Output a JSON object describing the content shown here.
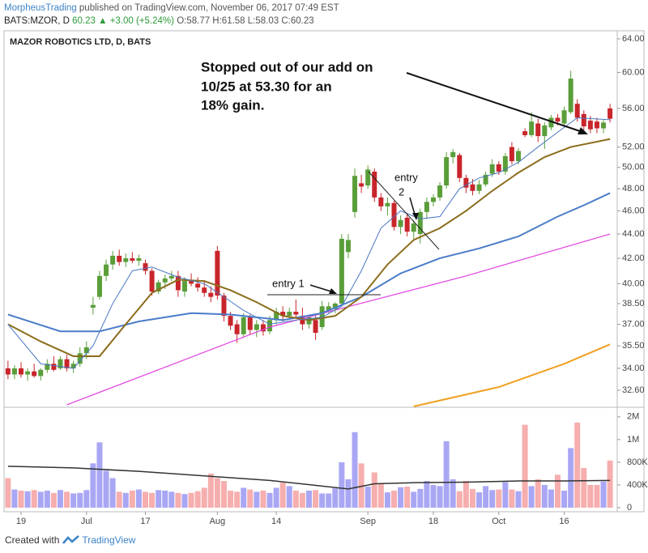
{
  "header": {
    "author": "MorpheusTrading",
    "published": " published on TradingView.com, November 06, 2017 07:49 EST",
    "symbol": "BATS:MZOR, D",
    "last": "60.23",
    "change": "▲ +3.00 (+5.24%)",
    "ohlc": "O:58.77 H:61.58 L:58.03 C:60.23"
  },
  "annotations": [
    "Stopped out of our add on",
    "10/25 at 53.30 for an",
    "18% gain.",
    "entry 1",
    "entry",
    "2"
  ],
  "footer": {
    "created": "Created with",
    "brand": "TradingView"
  },
  "chart_data": {
    "type": "candlestick",
    "title": "MAZOR ROBOTICS LTD, D, BATS",
    "categories": [
      null,
      null,
      "19",
      null,
      null,
      null,
      null,
      null,
      null,
      null,
      null,
      null,
      "Jul",
      null,
      null,
      null,
      null,
      null,
      null,
      null,
      null,
      "17",
      null,
      null,
      null,
      null,
      null,
      null,
      null,
      null,
      null,
      null,
      "Aug",
      null,
      null,
      null,
      null,
      null,
      null,
      null,
      null,
      "14",
      null,
      null,
      null,
      null,
      null,
      null,
      null,
      null,
      null,
      null,
      null,
      null,
      null,
      "Sep",
      null,
      null,
      null,
      null,
      null,
      null,
      null,
      null,
      null,
      "18",
      null,
      null,
      null,
      null,
      null,
      null,
      null,
      null,
      null,
      "Oct",
      null,
      null,
      null,
      null,
      null,
      null,
      null,
      null,
      null,
      "16",
      null,
      null,
      null,
      null,
      null,
      null,
      null
    ],
    "xlim": [
      -0.6,
      93.1
    ],
    "open": [
      34.0,
      33.6,
      34.0,
      33.6,
      33.8,
      33.5,
      33.9,
      34.3,
      34.0,
      34.6,
      34.0,
      34.3,
      35.0,
      38.2,
      39.0,
      40.6,
      41.5,
      42.2,
      41.7,
      42.0,
      41.8,
      41.6,
      41.0,
      39.4,
      40.1,
      40.4,
      40.6,
      39.4,
      40.2,
      40.0,
      39.7,
      39.3,
      42.6,
      39.1,
      37.6,
      37.0,
      36.3,
      37.5,
      36.6,
      37.0,
      36.5,
      37.3,
      37.9,
      37.6,
      37.9,
      37.6,
      37.0,
      37.3,
      36.8,
      38.0,
      38.1,
      38.5,
      42.5,
      45.9,
      48.5,
      48.3,
      49.6,
      47.2,
      46.4,
      46.7,
      44.6,
      45.4,
      44.2,
      44.0,
      45.9,
      46.8,
      47.2,
      48.3,
      51.0,
      51.2,
      49.0,
      48.4,
      47.8,
      48.4,
      49.4,
      50.3,
      49.6,
      52.0,
      50.6,
      53.6,
      53.2,
      54.4,
      53.1,
      54.0,
      55.0,
      54.4,
      55.6,
      56.5,
      55.4,
      54.7,
      54.6,
      53.9,
      56.0
    ],
    "high": [
      34.5,
      34.2,
      34.4,
      34.0,
      34.3,
      34.0,
      34.6,
      34.8,
      34.8,
      34.9,
      34.5,
      35.4,
      35.8,
      39.0,
      41.0,
      41.9,
      42.6,
      42.7,
      42.4,
      42.5,
      42.3,
      41.9,
      41.2,
      40.3,
      40.7,
      41.0,
      41.0,
      40.5,
      40.8,
      40.5,
      40.2,
      39.8,
      43.0,
      39.3,
      37.9,
      37.3,
      37.8,
      37.7,
      37.3,
      37.3,
      37.6,
      38.2,
      38.3,
      38.2,
      38.8,
      38.2,
      37.7,
      37.6,
      38.7,
      38.6,
      38.6,
      44.0,
      44.0,
      49.9,
      49.3,
      50.2,
      49.9,
      47.6,
      47.2,
      46.9,
      45.6,
      45.8,
      45.2,
      46.2,
      47.2,
      47.5,
      48.6,
      51.5,
      51.8,
      51.4,
      49.3,
      48.9,
      48.8,
      49.6,
      50.8,
      50.6,
      51.4,
      52.5,
      51.9,
      53.9,
      55.6,
      54.9,
      54.5,
      55.3,
      55.4,
      56.2,
      60.2,
      57.0,
      55.8,
      55.2,
      55.0,
      54.8,
      56.5
    ],
    "low": [
      33.3,
      33.3,
      33.4,
      33.2,
      33.4,
      33.2,
      33.7,
      33.8,
      33.9,
      33.8,
      33.7,
      34.1,
      34.6,
      37.7,
      38.8,
      40.2,
      41.1,
      41.4,
      41.3,
      41.6,
      41.4,
      40.7,
      39.1,
      39.2,
      39.6,
      40.2,
      39.0,
      39.0,
      39.8,
      39.4,
      39.0,
      38.6,
      38.8,
      37.2,
      36.6,
      35.7,
      36.1,
      36.3,
      36.1,
      36.2,
      36.3,
      37.0,
      37.2,
      37.4,
      37.5,
      36.6,
      36.7,
      35.9,
      36.6,
      37.8,
      37.8,
      38.3,
      42.0,
      45.4,
      47.6,
      48.0,
      46.8,
      46.0,
      45.6,
      44.3,
      44.0,
      43.8,
      43.6,
      43.2,
      45.3,
      46.4,
      46.9,
      48.0,
      50.4,
      48.6,
      47.6,
      47.4,
      47.5,
      48.2,
      49.1,
      49.3,
      49.3,
      50.3,
      50.3,
      53.0,
      53.0,
      52.5,
      51.8,
      53.7,
      54.2,
      54.0,
      55.4,
      54.6,
      53.7,
      53.4,
      53.4,
      53.4,
      54.5
    ],
    "close": [
      33.6,
      34.0,
      33.6,
      33.8,
      33.5,
      33.9,
      34.3,
      33.9,
      34.6,
      34.0,
      34.3,
      35.0,
      35.4,
      38.4,
      40.6,
      41.5,
      42.2,
      41.7,
      42.0,
      41.8,
      42.0,
      41.0,
      39.4,
      40.1,
      40.4,
      40.6,
      39.5,
      40.2,
      40.0,
      39.7,
      39.3,
      39.0,
      39.1,
      37.6,
      36.9,
      36.3,
      37.5,
      36.6,
      37.0,
      36.5,
      37.3,
      37.9,
      37.6,
      37.9,
      37.7,
      37.0,
      37.5,
      36.4,
      38.3,
      38.3,
      38.5,
      43.6,
      43.5,
      49.2,
      48.2,
      49.8,
      47.2,
      46.4,
      46.7,
      44.6,
      45.2,
      44.2,
      44.9,
      45.9,
      46.8,
      47.2,
      48.3,
      51.0,
      51.5,
      49.0,
      48.1,
      47.8,
      48.4,
      49.3,
      50.3,
      49.6,
      51.1,
      50.6,
      51.6,
      53.2,
      54.6,
      53.1,
      54.2,
      55.0,
      54.6,
      55.8,
      59.3,
      55.0,
      54.1,
      53.8,
      53.9,
      54.5,
      54.9
    ],
    "volume": [
      520000,
      320000,
      300000,
      290000,
      310000,
      280000,
      300000,
      260000,
      310000,
      280000,
      250000,
      260000,
      310000,
      780000,
      1150000,
      650000,
      520000,
      280000,
      260000,
      300000,
      320000,
      280000,
      260000,
      310000,
      300000,
      280000,
      260000,
      240000,
      260000,
      290000,
      350000,
      600000,
      520000,
      470000,
      300000,
      280000,
      350000,
      320000,
      280000,
      300000,
      260000,
      350000,
      440000,
      380000,
      300000,
      260000,
      300000,
      310000,
      250000,
      250000,
      340000,
      800000,
      500000,
      1330000,
      780000,
      370000,
      620000,
      430000,
      270000,
      300000,
      360000,
      370000,
      280000,
      330000,
      470000,
      400000,
      380000,
      1170000,
      500000,
      290000,
      470000,
      330000,
      270000,
      380000,
      310000,
      320000,
      450000,
      320000,
      290000,
      1460000,
      380000,
      500000,
      400000,
      320000,
      580000,
      300000,
      1050000,
      1500000,
      700000,
      400000,
      400000,
      460000,
      830000
    ],
    "log_scale": true,
    "ylim": [
      31.6,
      64.8
    ],
    "yticks": [
      {
        "value": 32.6,
        "label": "32.60"
      },
      {
        "value": 34,
        "label": "34.00"
      },
      {
        "value": 35.5,
        "label": "35.50"
      },
      {
        "value": 37,
        "label": "37.00"
      },
      {
        "value": 38.5,
        "label": "38.50"
      },
      {
        "value": 40,
        "label": "40.00"
      },
      {
        "value": 42,
        "label": "42.00"
      },
      {
        "value": 44,
        "label": "44.00"
      },
      {
        "value": 46,
        "label": "46.00"
      },
      {
        "value": 48,
        "label": "48.00"
      },
      {
        "value": 50,
        "label": "50.00"
      },
      {
        "value": 52,
        "label": "52.00"
      },
      {
        "value": 56,
        "label": "56.00"
      },
      {
        "value": 60,
        "label": "60.00"
      },
      {
        "value": 64,
        "label": "64.00"
      }
    ],
    "volume_ylim": [
      0,
      1740000
    ],
    "volume_yticks": [
      0,
      {
        "value": 400000,
        "label": "400K"
      },
      {
        "value": 800000,
        "label": "800K"
      },
      {
        "value": 1200000,
        "label": "1M"
      },
      {
        "value": 1600000,
        "label": "2M"
      }
    ],
    "up_color": "#5a9e3a",
    "down_color": "#c8252b",
    "volume_up_color": "#9a98f2",
    "volume_down_color": "#f5a0a0",
    "moving_averages": [
      {
        "color": "#f0a020",
        "line_width": 2,
        "x": [
          62,
          75,
          85,
          92
        ],
        "values": [
          31.6,
          32.8,
          34.3,
          35.6
        ]
      },
      {
        "color": "#e040e0",
        "line_width": 1.2,
        "x": [
          9,
          40,
          70,
          92
        ],
        "values": [
          31.7,
          36.8,
          40.6,
          44.0
        ]
      },
      {
        "color": "#4a7cc9",
        "line_width": 2,
        "x": [
          0,
          8,
          14,
          20,
          28,
          34,
          42,
          48,
          54,
          60,
          66,
          72,
          78,
          84,
          88,
          92
        ],
        "values": [
          37.7,
          36.5,
          36.5,
          37.2,
          37.8,
          37.7,
          37.3,
          37.8,
          39.0,
          40.8,
          42.0,
          42.8,
          43.8,
          45.5,
          46.5,
          47.6
        ]
      },
      {
        "color": "#8b6d1c",
        "line_width": 2,
        "x": [
          0,
          5,
          10,
          14,
          18,
          22,
          26,
          30,
          34,
          38,
          42,
          46,
          50,
          54,
          58,
          62,
          66,
          70,
          74,
          78,
          82,
          86,
          92
        ],
        "values": [
          37.0,
          35.8,
          34.8,
          34.8,
          37.0,
          39.3,
          40.3,
          40.2,
          39.5,
          38.6,
          37.6,
          37.3,
          37.6,
          39.0,
          41.5,
          43.5,
          44.5,
          46.0,
          47.8,
          49.5,
          51.0,
          52.0,
          52.8
        ]
      },
      {
        "color": "#4a78c2",
        "line_width": 1,
        "x": [
          0,
          5,
          10,
          13,
          16,
          19,
          22,
          26,
          30,
          33,
          36,
          40,
          44,
          48,
          51,
          54,
          57,
          60,
          63,
          66,
          69,
          72,
          75,
          78,
          81,
          84,
          87,
          92
        ],
        "values": [
          37.0,
          34.3,
          34.0,
          35.5,
          38.5,
          41.0,
          41.3,
          40.5,
          40.0,
          39.0,
          38.0,
          37.0,
          37.3,
          37.5,
          38.3,
          41.0,
          44.5,
          46.0,
          45.3,
          45.5,
          48.0,
          49.0,
          49.5,
          50.5,
          52.0,
          53.5,
          55.0,
          54.8
        ]
      }
    ],
    "volume_ma": {
      "color": "#333333",
      "line_width": 1.5,
      "x": [
        0,
        10,
        20,
        30,
        40,
        48,
        52,
        56,
        62,
        70,
        78,
        85,
        92
      ],
      "values": [
        730000,
        700000,
        640000,
        560000,
        480000,
        380000,
        330000,
        420000,
        440000,
        450000,
        470000,
        470000,
        480000
      ]
    }
  }
}
